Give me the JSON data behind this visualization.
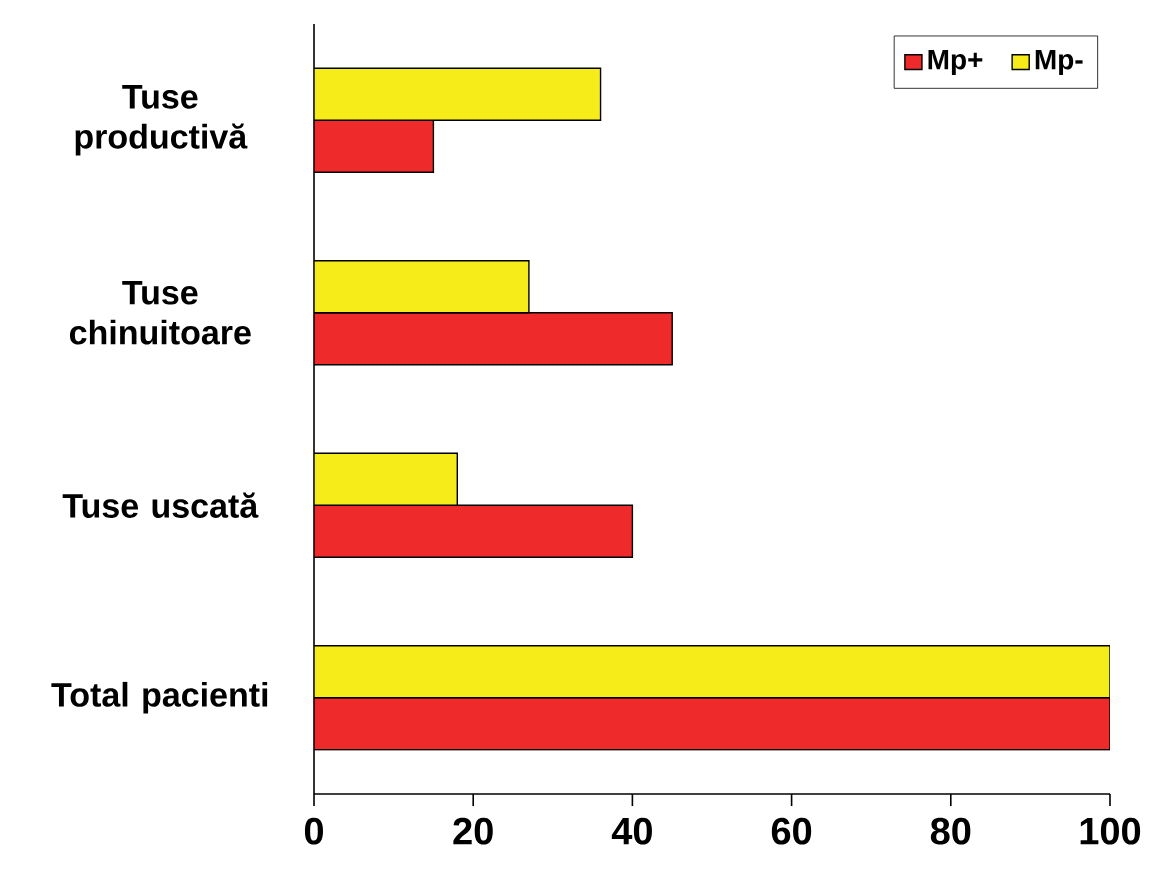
{
  "chart_data": {
    "type": "bar",
    "orientation": "horizontal",
    "categories": [
      "Tuse productivă",
      "Tuse chinuitoare",
      "Tuse uscată",
      "Total pacienti"
    ],
    "series": [
      {
        "name": "Mp+",
        "color": "#ee2a2a",
        "values": [
          15,
          45,
          40,
          100
        ]
      },
      {
        "name": "Mp-",
        "color": "#f5ec1a",
        "values": [
          36,
          27,
          18,
          100
        ]
      }
    ],
    "xlim": [
      0,
      100
    ],
    "xticks": [
      0,
      20,
      40,
      60,
      80,
      100
    ],
    "legend": "top right"
  }
}
